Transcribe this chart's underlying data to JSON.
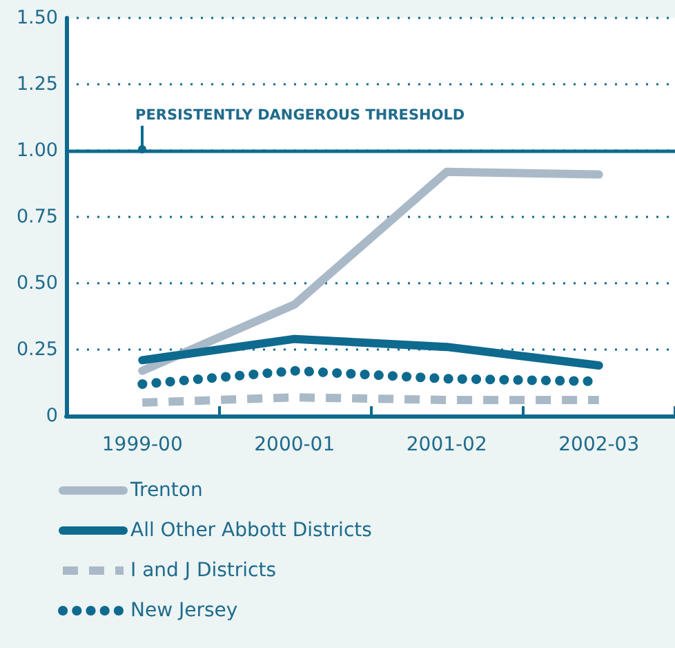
{
  "chart_data": {
    "type": "line",
    "categories": [
      "1999-00",
      "2000-01",
      "2001-02",
      "2002-03"
    ],
    "series": [
      {
        "name": "Trenton",
        "color": "#a9b9c7",
        "line_style": "solid",
        "values": [
          0.17,
          0.42,
          0.92,
          0.91
        ]
      },
      {
        "name": "All Other Abbott Districts",
        "color": "#0e6a8e",
        "line_style": "solid",
        "values": [
          0.21,
          0.29,
          0.26,
          0.19
        ]
      },
      {
        "name": "I and J Districts",
        "color": "#a9b9c7",
        "line_style": "dashed",
        "values": [
          0.05,
          0.07,
          0.06,
          0.06
        ]
      },
      {
        "name": "New Jersey",
        "color": "#0e6a8e",
        "line_style": "dotted",
        "values": [
          0.12,
          0.17,
          0.14,
          0.13
        ]
      }
    ],
    "ylim": [
      0,
      1.5
    ],
    "yticks": [
      0,
      0.25,
      {
        "value": 0.5,
        "label": "0.50"
      },
      0.75,
      {
        "value": 1,
        "label": "1.00"
      },
      1.25,
      {
        "value": 1.5,
        "label": "1.50"
      }
    ],
    "ref_lines": [
      {
        "axis": "y",
        "value": 1,
        "label": "PERSISTENTLY DANGEROUS THRESHOLD",
        "color": "#0e6a8e",
        "line_style": "solid"
      }
    ],
    "grid": "y",
    "legend": "bottom",
    "marker": "none"
  }
}
